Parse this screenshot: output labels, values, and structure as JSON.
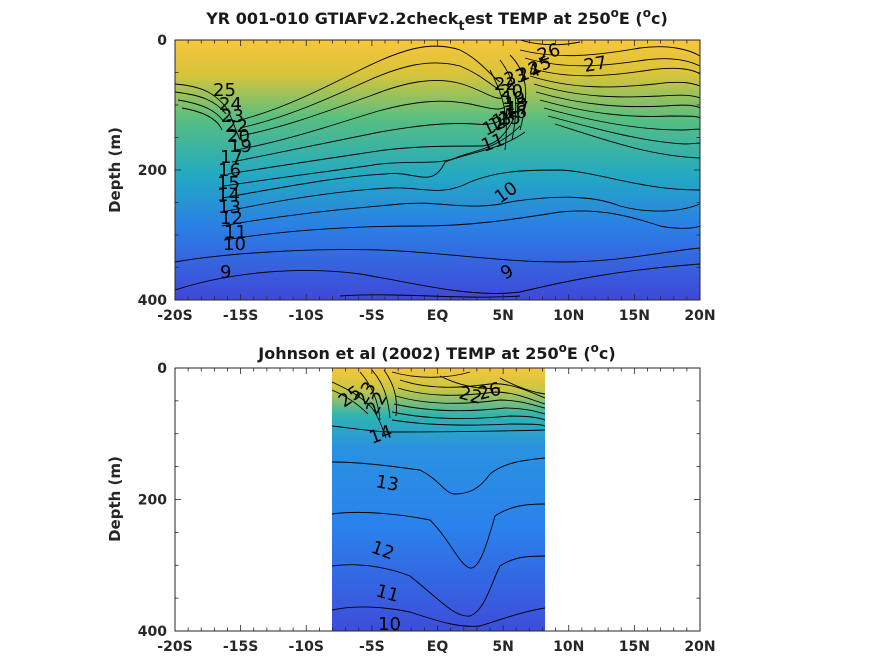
{
  "chart_data": [
    {
      "type": "heatmap",
      "title_main": "YR 001-010 GTIAFv2.2check",
      "title_sub": "t",
      "title_rest": "est TEMP at 250",
      "title_sup1": "o",
      "title_e": "E (",
      "title_sup2": "o",
      "title_end": "c)",
      "xlabel": "",
      "ylabel": "Depth (m)",
      "xlim": [
        -20,
        20
      ],
      "ylim": [
        400,
        0
      ],
      "xticks": [
        "-20S",
        "-15S",
        "-10S",
        "-5S",
        "EQ",
        "5N",
        "10N",
        "15N",
        "20N"
      ],
      "yticks": [
        "0",
        "200",
        "400"
      ],
      "data_extent": [
        -20,
        20
      ],
      "contour_labels": [
        "25",
        "24",
        "23",
        "22",
        "20",
        "19",
        "17",
        "16",
        "15",
        "14",
        "13",
        "12",
        "11",
        "10",
        "9",
        "26",
        "27",
        "25",
        "24",
        "23",
        "22",
        "20",
        "19",
        "18",
        "17",
        "16",
        "15",
        "14",
        "13",
        "12",
        "11",
        "10",
        "9"
      ],
      "contour_levels_shown": [
        9,
        10,
        11,
        12,
        13,
        14,
        15,
        16,
        17,
        18,
        19,
        20,
        21,
        22,
        23,
        24,
        25,
        26,
        27
      ]
    },
    {
      "type": "heatmap",
      "title_main": "Johnson et al (2002) TEMP at 250",
      "title_sup1": "o",
      "title_e": "E (",
      "title_sup2": "o",
      "title_end": "c)",
      "xlabel": "",
      "ylabel": "Depth (m)",
      "xlim": [
        -20,
        20
      ],
      "ylim": [
        400,
        0
      ],
      "xticks": [
        "-20S",
        "-15S",
        "-10S",
        "-5S",
        "EQ",
        "5N",
        "10N",
        "15N",
        "20N"
      ],
      "yticks": [
        "0",
        "200",
        "400"
      ],
      "data_extent": [
        -8,
        8
      ],
      "contour_labels": [
        "25",
        "23",
        "22",
        "14",
        "26",
        "22",
        "13",
        "12",
        "11",
        "10"
      ],
      "contour_levels_shown": [
        10,
        11,
        12,
        13,
        14,
        22,
        23,
        25,
        26
      ]
    }
  ],
  "colors": {
    "warm": "#f7c53a",
    "mid": "#2ab7a3",
    "cool": "#2b86e8",
    "cold": "#4048d8"
  }
}
